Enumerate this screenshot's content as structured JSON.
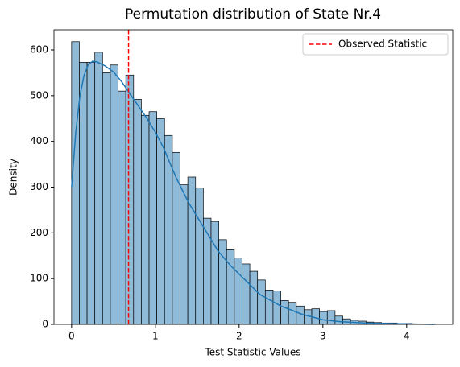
{
  "chart_data": {
    "type": "histogram",
    "title": "Permutation distribution of State Nr.4",
    "xlabel": "Test Statistic Values",
    "ylabel": "Density",
    "bins": [
      0,
      0.0925,
      0.185,
      0.2775,
      0.37,
      0.4625,
      0.555,
      0.6475,
      0.74,
      0.8325,
      0.925,
      1.0175,
      1.11,
      1.2025,
      1.295,
      1.3875,
      1.48,
      1.5725,
      1.665,
      1.7575,
      1.85,
      1.9425,
      2.035,
      2.1275,
      2.22,
      2.3125,
      2.405,
      2.4975,
      2.59,
      2.6825,
      2.775,
      2.8675,
      2.96,
      3.0525,
      3.145,
      3.2375,
      3.33,
      3.4225,
      3.515,
      3.6075,
      3.7,
      3.7925,
      3.885,
      3.9775,
      4.07,
      4.1625,
      4.255,
      4.3475
    ],
    "counts": [
      618,
      573,
      573,
      595,
      550,
      567,
      510,
      545,
      492,
      457,
      465,
      450,
      413,
      376,
      305,
      322,
      298,
      232,
      225,
      185,
      163,
      145,
      132,
      116,
      97,
      75,
      73,
      52,
      48,
      40,
      32,
      34,
      28,
      30,
      18,
      12,
      9,
      7,
      5,
      4,
      3,
      3,
      2,
      2,
      1,
      1,
      1
    ],
    "color": "#8fbbd9",
    "edgecolor": "#000000",
    "kde": {
      "color": "#1f77b4",
      "x": [
        0,
        0.05,
        0.1,
        0.15,
        0.2,
        0.25,
        0.3,
        0.4,
        0.5,
        0.6,
        0.75,
        0.9,
        1.0,
        1.1,
        1.25,
        1.4,
        1.5,
        1.6,
        1.75,
        1.9,
        2.0,
        2.1,
        2.25,
        2.4,
        2.5,
        2.6,
        2.75,
        2.9,
        3.0,
        3.2,
        3.5,
        3.75,
        4.0,
        4.33
      ],
      "y": [
        300,
        420,
        500,
        545,
        568,
        575,
        574,
        565,
        552,
        530,
        490,
        450,
        420,
        385,
        320,
        265,
        235,
        205,
        160,
        128,
        110,
        92,
        65,
        50,
        40,
        33,
        22,
        15,
        10,
        6,
        3,
        2,
        1,
        0
      ]
    },
    "vline": {
      "name": "Observed Statistic",
      "x": 0.68,
      "color": "#ff0000"
    },
    "xlim": [
      -0.21,
      4.55
    ],
    "ylim": [
      0,
      644
    ],
    "xticks": [
      0,
      1,
      2,
      3,
      4
    ],
    "yticks": [
      0,
      100,
      200,
      300,
      400,
      500,
      600
    ],
    "legend_loc": "upper right"
  }
}
